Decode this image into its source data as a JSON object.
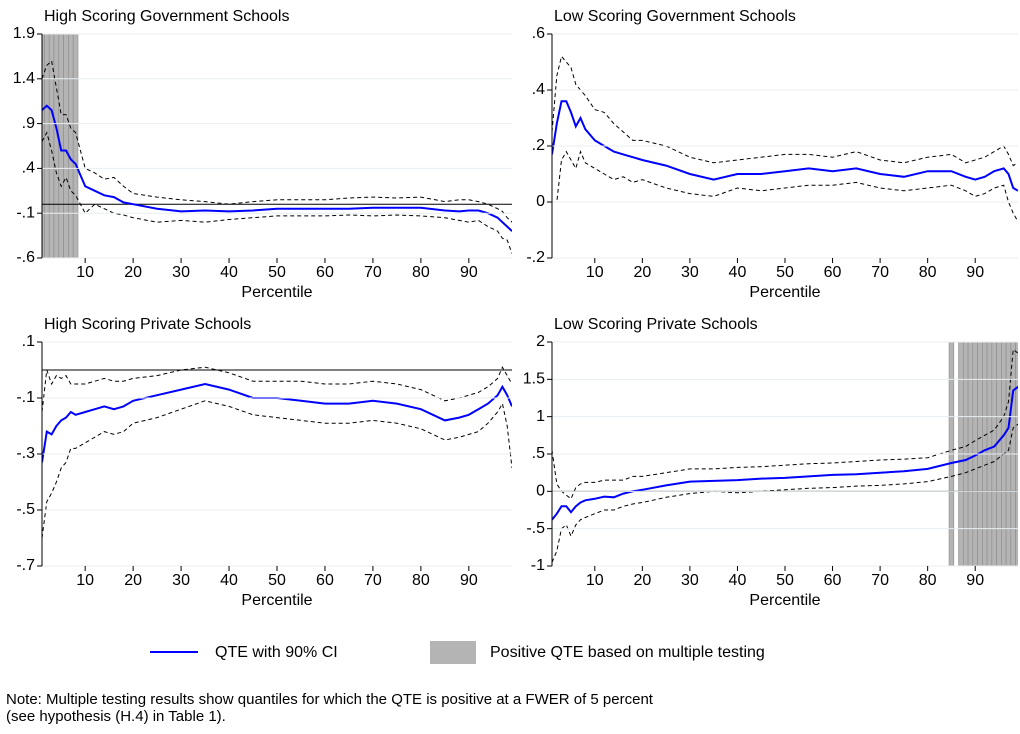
{
  "chart_data": [
    {
      "type": "line",
      "title": "High Scoring Government Schools",
      "xlabel": "Percentile",
      "x": [
        1,
        2,
        3,
        4,
        5,
        6,
        7,
        8,
        10,
        12,
        14,
        16,
        18,
        20,
        25,
        30,
        35,
        40,
        45,
        50,
        55,
        60,
        65,
        70,
        75,
        80,
        85,
        88,
        90,
        92,
        94,
        96,
        97,
        98,
        99
      ],
      "series": [
        {
          "color": "#0000ff",
          "style": "solid",
          "values": [
            1.05,
            1.1,
            1.05,
            0.85,
            0.6,
            0.6,
            0.5,
            0.45,
            0.2,
            0.15,
            0.1,
            0.08,
            0.02,
            0.0,
            -0.05,
            -0.08,
            -0.07,
            -0.08,
            -0.07,
            -0.05,
            -0.05,
            -0.05,
            -0.05,
            -0.04,
            -0.04,
            -0.04,
            -0.07,
            -0.08,
            -0.07,
            -0.07,
            -0.1,
            -0.15,
            -0.2,
            -0.25,
            -0.3
          ]
        },
        {
          "color": "#000000",
          "style": "dashed",
          "values": [
            1.4,
            1.55,
            1.6,
            1.3,
            1.0,
            1.0,
            0.85,
            0.8,
            0.4,
            0.35,
            0.28,
            0.3,
            0.2,
            0.12,
            0.08,
            0.05,
            0.03,
            0.0,
            0.03,
            0.05,
            0.05,
            0.05,
            0.07,
            0.08,
            0.07,
            0.08,
            0.03,
            0.05,
            0.05,
            0.03,
            0.0,
            -0.05,
            -0.08,
            -0.15,
            -0.2
          ]
        },
        {
          "color": "#000000",
          "style": "dashed",
          "values": [
            0.7,
            0.8,
            0.6,
            0.35,
            0.2,
            0.3,
            0.15,
            0.1,
            -0.1,
            0.0,
            -0.05,
            -0.1,
            -0.12,
            -0.15,
            -0.2,
            -0.18,
            -0.2,
            -0.17,
            -0.15,
            -0.13,
            -0.13,
            -0.13,
            -0.12,
            -0.13,
            -0.12,
            -0.13,
            -0.15,
            -0.18,
            -0.2,
            -0.18,
            -0.25,
            -0.3,
            -0.38,
            -0.4,
            -0.55
          ]
        }
      ],
      "shaded": [
        1,
        2,
        3,
        4,
        5,
        6,
        7,
        8
      ],
      "shade_color": "#b4b4b4",
      "hline": 0,
      "xlim": [
        1,
        99
      ],
      "xticks": [
        10,
        20,
        30,
        40,
        50,
        60,
        70,
        80,
        90
      ],
      "ylim": [
        -0.6,
        1.9
      ],
      "yticks": [
        {
          "value": -0.6,
          "label": "-.6"
        },
        {
          "value": -0.1,
          "label": "-.1"
        },
        {
          "value": 0.4,
          "label": ".4"
        },
        {
          "value": 0.9,
          "label": ".9"
        },
        {
          "value": 1.4,
          "label": "1.4"
        },
        {
          "value": 1.9,
          "label": "1.9"
        }
      ],
      "grid": true
    },
    {
      "type": "line",
      "title": "Low Scoring Government Schools",
      "xlabel": "Percentile",
      "x": [
        1,
        2,
        3,
        4,
        5,
        6,
        7,
        8,
        10,
        12,
        14,
        16,
        18,
        20,
        25,
        30,
        35,
        40,
        45,
        50,
        55,
        60,
        65,
        70,
        75,
        80,
        85,
        88,
        90,
        92,
        94,
        96,
        97,
        98,
        99
      ],
      "series": [
        {
          "color": "#0000ff",
          "style": "solid",
          "values": [
            0.17,
            0.28,
            0.36,
            0.36,
            0.32,
            0.27,
            0.3,
            0.26,
            0.22,
            0.2,
            0.18,
            0.17,
            0.16,
            0.15,
            0.13,
            0.1,
            0.08,
            0.1,
            0.1,
            0.11,
            0.12,
            0.11,
            0.12,
            0.1,
            0.09,
            0.11,
            0.11,
            0.09,
            0.08,
            0.09,
            0.11,
            0.12,
            0.1,
            0.05,
            0.04
          ]
        },
        {
          "color": "#000000",
          "style": "dashed",
          "values": [
            0.25,
            0.45,
            0.52,
            0.5,
            0.48,
            0.42,
            0.4,
            0.38,
            0.33,
            0.32,
            0.28,
            0.25,
            0.22,
            0.22,
            0.2,
            0.16,
            0.14,
            0.15,
            0.16,
            0.17,
            0.17,
            0.16,
            0.18,
            0.15,
            0.14,
            0.16,
            0.17,
            0.14,
            0.15,
            0.16,
            0.18,
            0.2,
            0.17,
            0.13,
            0.14
          ]
        },
        {
          "color": "#000000",
          "style": "dashed",
          "values": [
            0.0,
            0.0,
            0.15,
            0.18,
            0.15,
            0.12,
            0.18,
            0.14,
            0.12,
            0.1,
            0.08,
            0.09,
            0.07,
            0.08,
            0.05,
            0.03,
            0.02,
            0.05,
            0.04,
            0.05,
            0.06,
            0.06,
            0.07,
            0.05,
            0.04,
            0.05,
            0.06,
            0.04,
            0.02,
            0.03,
            0.05,
            0.06,
            0.0,
            -0.04,
            -0.07
          ]
        }
      ],
      "shaded": [],
      "shade_color": "#b4b4b4",
      "hline": 0,
      "xlim": [
        1,
        99
      ],
      "xticks": [
        10,
        20,
        30,
        40,
        50,
        60,
        70,
        80,
        90
      ],
      "ylim": [
        -0.2,
        0.6
      ],
      "yticks": [
        {
          "value": -0.2,
          "label": "-.2"
        },
        0,
        {
          "value": 0.2,
          "label": ".2"
        },
        {
          "value": 0.4,
          "label": ".4"
        },
        {
          "value": 0.6,
          "label": ".6"
        }
      ],
      "grid": true
    },
    {
      "type": "line",
      "title": "High Scoring Private Schools",
      "xlabel": "Percentile",
      "x": [
        1,
        2,
        3,
        4,
        5,
        6,
        7,
        8,
        10,
        12,
        14,
        16,
        18,
        20,
        25,
        30,
        35,
        40,
        45,
        50,
        55,
        60,
        65,
        70,
        75,
        80,
        85,
        88,
        90,
        92,
        94,
        96,
        97,
        98,
        99
      ],
      "series": [
        {
          "color": "#0000ff",
          "style": "solid",
          "values": [
            -0.33,
            -0.22,
            -0.23,
            -0.2,
            -0.18,
            -0.17,
            -0.15,
            -0.16,
            -0.15,
            -0.14,
            -0.13,
            -0.14,
            -0.13,
            -0.11,
            -0.09,
            -0.07,
            -0.05,
            -0.07,
            -0.1,
            -0.1,
            -0.11,
            -0.12,
            -0.12,
            -0.11,
            -0.12,
            -0.14,
            -0.18,
            -0.17,
            -0.16,
            -0.14,
            -0.12,
            -0.09,
            -0.06,
            -0.09,
            -0.13
          ]
        },
        {
          "color": "#000000",
          "style": "dashed",
          "values": [
            -0.15,
            0.0,
            -0.05,
            -0.02,
            -0.03,
            -0.02,
            -0.05,
            -0.05,
            -0.05,
            -0.04,
            -0.03,
            -0.04,
            -0.04,
            -0.03,
            -0.02,
            0.0,
            0.01,
            -0.01,
            -0.04,
            -0.04,
            -0.04,
            -0.05,
            -0.05,
            -0.04,
            -0.05,
            -0.07,
            -0.11,
            -0.1,
            -0.09,
            -0.08,
            -0.06,
            -0.03,
            0.01,
            -0.02,
            -0.05
          ]
        },
        {
          "color": "#000000",
          "style": "dashed",
          "values": [
            -0.6,
            -0.47,
            -0.44,
            -0.4,
            -0.35,
            -0.33,
            -0.28,
            -0.28,
            -0.26,
            -0.24,
            -0.22,
            -0.23,
            -0.22,
            -0.19,
            -0.17,
            -0.14,
            -0.11,
            -0.13,
            -0.16,
            -0.17,
            -0.18,
            -0.19,
            -0.19,
            -0.18,
            -0.19,
            -0.21,
            -0.25,
            -0.24,
            -0.23,
            -0.22,
            -0.19,
            -0.15,
            -0.12,
            -0.2,
            -0.35
          ]
        }
      ],
      "shaded": [],
      "shade_color": "#b4b4b4",
      "hline": 0,
      "xlim": [
        1,
        99
      ],
      "xticks": [
        10,
        20,
        30,
        40,
        50,
        60,
        70,
        80,
        90
      ],
      "ylim": [
        -0.7,
        0.1
      ],
      "yticks": [
        {
          "value": -0.7,
          "label": "-.7"
        },
        {
          "value": -0.5,
          "label": "-.5"
        },
        {
          "value": -0.3,
          "label": "-.3"
        },
        {
          "value": -0.1,
          "label": "-.1"
        },
        {
          "value": 0.1,
          "label": ".1"
        }
      ],
      "grid": true
    },
    {
      "type": "line",
      "title": "Low Scoring Private Schools",
      "xlabel": "Percentile",
      "x": [
        1,
        2,
        3,
        4,
        5,
        6,
        7,
        8,
        10,
        12,
        14,
        16,
        18,
        20,
        25,
        30,
        35,
        40,
        45,
        50,
        55,
        60,
        65,
        70,
        75,
        80,
        85,
        88,
        90,
        92,
        94,
        96,
        97,
        98,
        99
      ],
      "series": [
        {
          "color": "#0000ff",
          "style": "solid",
          "values": [
            -0.38,
            -0.3,
            -0.2,
            -0.2,
            -0.28,
            -0.2,
            -0.15,
            -0.12,
            -0.1,
            -0.07,
            -0.08,
            -0.03,
            0.0,
            0.02,
            0.08,
            0.13,
            0.14,
            0.15,
            0.17,
            0.18,
            0.2,
            0.22,
            0.23,
            0.25,
            0.27,
            0.3,
            0.38,
            0.42,
            0.48,
            0.55,
            0.6,
            0.75,
            0.85,
            1.35,
            1.4
          ]
        },
        {
          "color": "#000000",
          "style": "dashed",
          "values": [
            0.55,
            0.1,
            0.0,
            -0.05,
            -0.1,
            0.05,
            0.1,
            0.12,
            0.12,
            0.15,
            0.15,
            0.15,
            0.2,
            0.2,
            0.25,
            0.3,
            0.3,
            0.32,
            0.33,
            0.35,
            0.37,
            0.38,
            0.4,
            0.42,
            0.43,
            0.45,
            0.55,
            0.6,
            0.68,
            0.75,
            0.82,
            1.0,
            1.2,
            1.9,
            1.85
          ]
        },
        {
          "color": "#000000",
          "style": "dashed",
          "values": [
            -0.95,
            -0.8,
            -0.5,
            -0.45,
            -0.6,
            -0.45,
            -0.38,
            -0.35,
            -0.3,
            -0.25,
            -0.25,
            -0.2,
            -0.17,
            -0.15,
            -0.08,
            -0.03,
            0.0,
            -0.02,
            0.0,
            0.02,
            0.04,
            0.05,
            0.07,
            0.08,
            0.1,
            0.13,
            0.2,
            0.25,
            0.3,
            0.35,
            0.4,
            0.5,
            0.55,
            0.85,
            0.9
          ]
        }
      ],
      "shaded": [
        85,
        87,
        88,
        89,
        90,
        91,
        92,
        93,
        94,
        95,
        96,
        97,
        98,
        99
      ],
      "shade_color": "#b4b4b4",
      "hline": 0,
      "xlim": [
        1,
        99
      ],
      "xticks": [
        10,
        20,
        30,
        40,
        50,
        60,
        70,
        80,
        90
      ],
      "ylim": [
        -1,
        2
      ],
      "yticks": [
        -1,
        {
          "value": -0.5,
          "label": "-.5"
        },
        0,
        {
          "value": 0.5,
          "label": ".5"
        },
        1,
        1.5,
        2
      ],
      "grid": true
    }
  ],
  "legend": {
    "line": "QTE with 90% CI",
    "band": "Positive QTE based on multiple testing"
  },
  "note": [
    "Note: Multiple testing results show quantiles for which the QTE is positive at a FWER of 5 percent",
    "(see hypothesis (H.4) in Table 1)."
  ]
}
